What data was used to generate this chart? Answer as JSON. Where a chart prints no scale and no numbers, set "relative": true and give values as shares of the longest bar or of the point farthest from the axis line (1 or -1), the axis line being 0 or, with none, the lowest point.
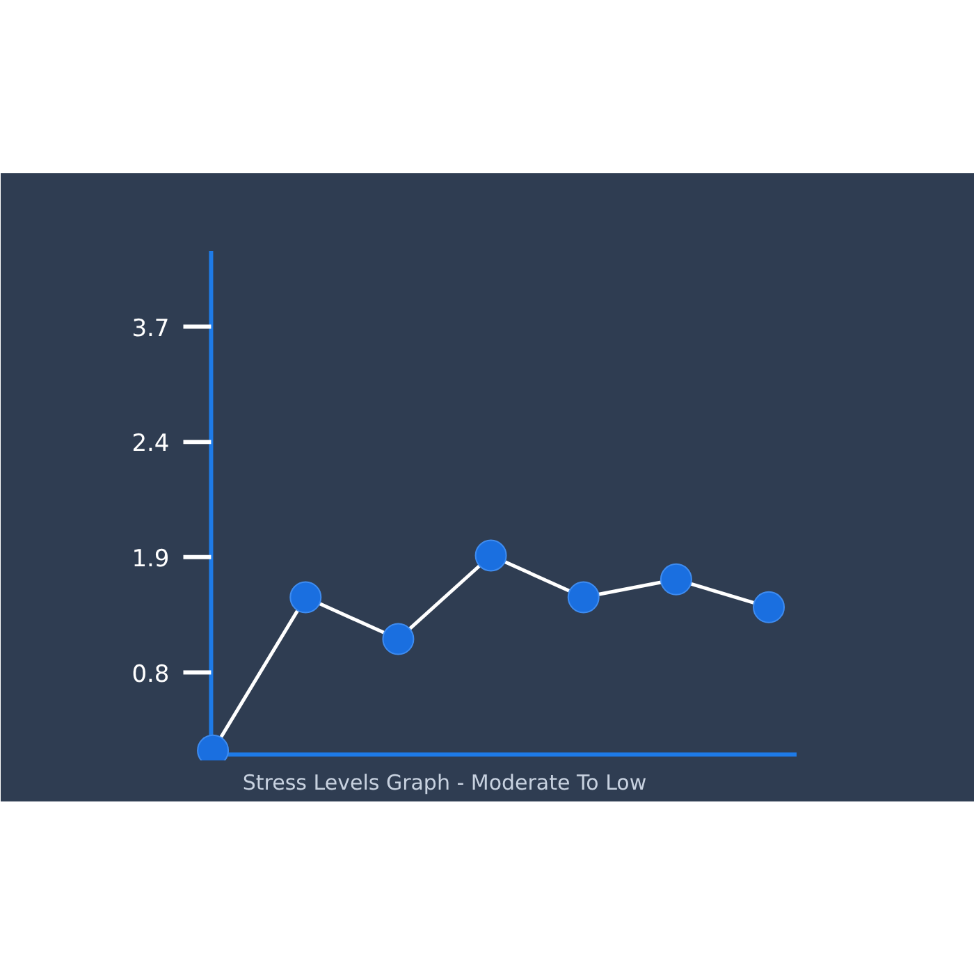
{
  "chart_data": {
    "type": "line",
    "title": "Stress Levels Graph - Moderate To Low",
    "categories": [
      null,
      null,
      null,
      null,
      null,
      null,
      null
    ],
    "series": [
      {
        "color": "#ffffff",
        "values": [
          0.02,
          0.79,
          0.58,
          1,
          0.79,
          0.88,
          0.74
        ]
      }
    ],
    "relative": true,
    "annotations": [
      "3.7",
      "2.4",
      "1.9",
      "0.8"
    ],
    "grid": false,
    "marker": "circle",
    "line_style": "solid"
  }
}
